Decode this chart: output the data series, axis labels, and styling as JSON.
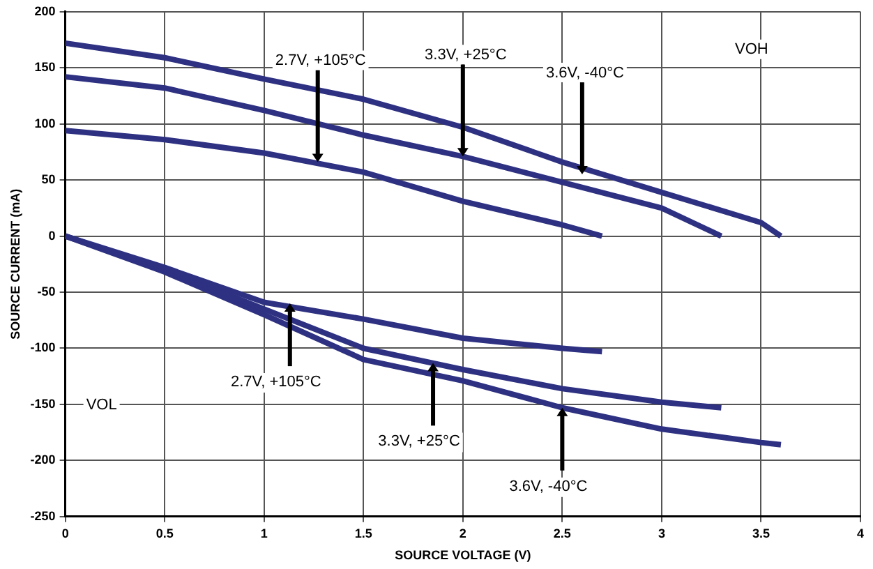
{
  "chart_data": {
    "type": "line",
    "xlabel": "SOURCE VOLTAGE (V)",
    "ylabel": "SOURCE CURRENT (mA)",
    "xlim": [
      0,
      4
    ],
    "xticks": [
      0,
      0.5,
      1,
      1.5,
      2,
      2.5,
      3,
      3.5,
      4
    ],
    "ylim": [
      -250,
      200
    ],
    "yticks": [
      -250,
      -200,
      -150,
      -100,
      -50,
      0,
      50,
      100,
      150,
      200
    ],
    "grid": true,
    "legend": false,
    "marker": "none",
    "line_style": "solid",
    "series": [
      {
        "color": "#2e3182",
        "x": [
          0,
          0.5,
          1,
          1.5,
          2,
          2.5,
          3,
          3.5,
          3.6
        ],
        "values": [
          172,
          159,
          140,
          122,
          97,
          66,
          39,
          12,
          0
        ]
      },
      {
        "color": "#2e3182",
        "x": [
          0,
          0.5,
          1,
          1.5,
          2,
          2.5,
          3,
          3.3
        ],
        "values": [
          142,
          132,
          112,
          90,
          71,
          48,
          25,
          0
        ]
      },
      {
        "color": "#2e3182",
        "x": [
          0,
          0.5,
          1,
          1.5,
          2,
          2.5,
          2.7
        ],
        "values": [
          94,
          86,
          74,
          57,
          31,
          10,
          0
        ]
      },
      {
        "color": "#2e3182",
        "x": [
          0,
          0.5,
          1,
          1.5,
          2,
          2.5,
          2.7
        ],
        "values": [
          0,
          -28,
          -59,
          -74,
          -91,
          -100,
          -103
        ]
      },
      {
        "color": "#2e3182",
        "x": [
          0,
          0.5,
          1,
          1.5,
          2,
          2.5,
          3,
          3.3
        ],
        "values": [
          0,
          -30,
          -65,
          -100,
          -119,
          -136,
          -148,
          -153
        ]
      },
      {
        "color": "#2e3182",
        "x": [
          0,
          0.5,
          1,
          1.5,
          2,
          2.5,
          3,
          3.5,
          3.6
        ],
        "values": [
          0,
          -32,
          -70,
          -110,
          -129,
          -153,
          -172,
          -184,
          -186
        ]
      }
    ],
    "annotations": [
      {
        "text": "2.7V, +105°C",
        "x": 1.27,
        "y": 66
      },
      {
        "text": "3.3V, +25°C",
        "x": 2.0,
        "y": 71
      },
      {
        "text": "3.6V, -40°C",
        "x": 2.6,
        "y": 55
      },
      {
        "text": "2.7V, +105°C",
        "x": 1.13,
        "y": -60
      },
      {
        "text": "3.3V, +25°C",
        "x": 1.85,
        "y": -113
      },
      {
        "text": "3.6V, -40°C",
        "x": 2.5,
        "y": -153
      },
      "VOH",
      "VOL"
    ]
  }
}
